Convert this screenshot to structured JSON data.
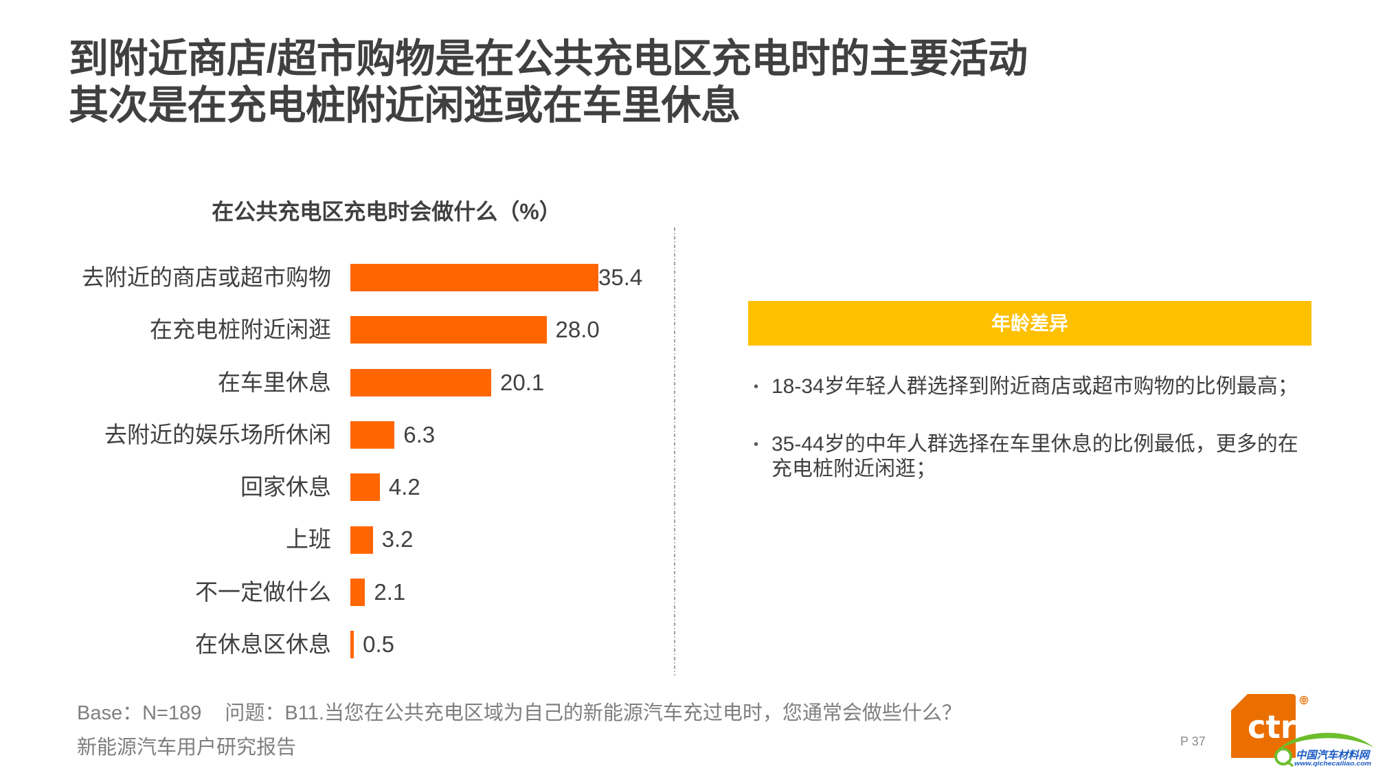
{
  "slide": {
    "title_line1": "到附近商店/超市购物是在公共充电区充电时的主要活动",
    "title_line2": "其次是在充电桩附近闲逛或在车里休息"
  },
  "chart_data": {
    "type": "bar",
    "orientation": "horizontal",
    "title": "在公共充电区充电时会做什么（%）",
    "categories": [
      "去附近的商店或超市购物",
      "在充电桩附近闲逛",
      "在车里休息",
      "去附近的娱乐场所休闲",
      "回家休息",
      "上班",
      "不一定做什么",
      "在休息区休息"
    ],
    "values": [
      35.4,
      28.0,
      20.1,
      6.3,
      4.2,
      3.2,
      2.1,
      0.5
    ],
    "value_labels": [
      "35.4",
      "28.0",
      "20.1",
      "6.3",
      "4.2",
      "3.2",
      "2.1",
      "0.5"
    ],
    "xlabel": "",
    "ylabel": "",
    "unit": "%",
    "xlim": [
      0,
      35.4
    ],
    "grid": false,
    "legend": null,
    "data_labels": true,
    "bar_color": "#FF6600"
  },
  "panel": {
    "header": "年龄差异",
    "header_color": "#FFC000",
    "bullets": [
      "18-34岁年轻人群选择到附近商店或超市购物的比例最高；",
      "35-44岁的中年人群选择在车里休息的比例最低，更多的在充电桩附近闲逛；"
    ],
    "bullet_symbol": "•"
  },
  "footer": {
    "base": "Base：N=189",
    "question": "问题：B11.当您在公共充电区域为自己的新能源汽车充过电时，您通常会做些什么？",
    "report_name": "新能源汽车用户研究报告",
    "page": "P 37"
  },
  "logo": {
    "text": "ctr",
    "color": "#EA6E00"
  },
  "watermark": {
    "name": "中国汽车材料网",
    "url": "www.qichecailiao.com",
    "green": "#6DBE2D",
    "blue": "#1C5BC4"
  },
  "theme": {
    "text_dark": "#404040",
    "text_muted": "#7F7F7F",
    "divider": "#8C8C8C",
    "background": "#FFFFFF"
  }
}
